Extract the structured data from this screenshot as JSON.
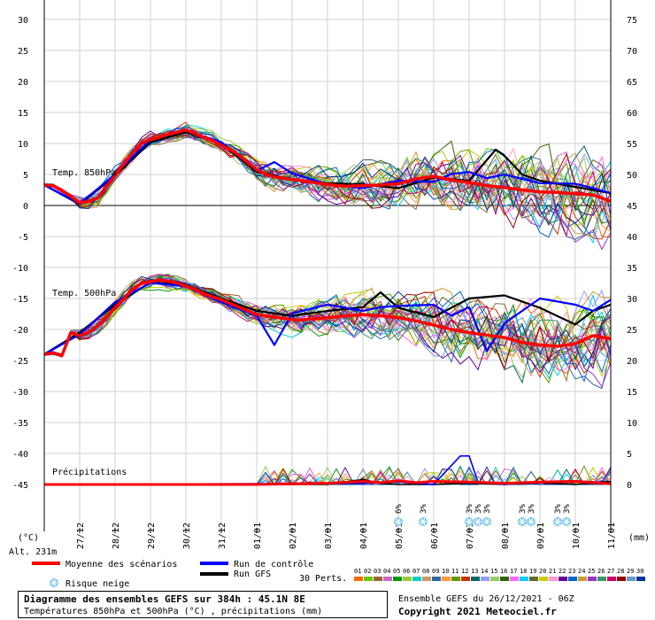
{
  "chart_data": {
    "type": "line",
    "title": "Diagramme des ensembles GEFS sur 384h : 45.1N 8E",
    "subtitle": "Températures 850hPa et 500hPa (°C) , précipitations (mm)",
    "ensemble_label": "Ensemble GEFS du 26/12/2021 - 06Z",
    "copyright": "Copyright 2021 Meteociel.fr",
    "left_axis": {
      "unit": "(°C)",
      "range": [
        -45,
        30
      ],
      "ticks": [
        30,
        25,
        20,
        15,
        10,
        5,
        0,
        -5,
        -10,
        -15,
        -20,
        -25,
        -30,
        -35,
        -40,
        -45
      ]
    },
    "right_axis": {
      "unit": "(mm)",
      "range": [
        0,
        75
      ],
      "ticks": [
        75,
        70,
        65,
        60,
        55,
        50,
        45,
        40,
        35,
        30,
        25,
        20,
        15,
        10,
        5,
        0
      ]
    },
    "altitude": "Alt. 231m",
    "x_dates": [
      "27/12",
      "28/12",
      "29/12",
      "30/12",
      "31/12",
      "01/01",
      "02/01",
      "03/01",
      "04/01",
      "05/01",
      "06/01",
      "07/01",
      "08/01",
      "09/01",
      "10/01",
      "11/01"
    ],
    "panel_labels": {
      "t850": "Temp. 850hPa",
      "t500": "Temp. 500hPa",
      "precip": "Précipitations"
    },
    "snow_risk": [
      {
        "day": 10.0,
        "pct": "6%"
      },
      {
        "day": 10.7,
        "pct": "3%"
      },
      {
        "day": 12.0,
        "pct": "3%"
      },
      {
        "day": 12.25,
        "pct": "3%"
      },
      {
        "day": 12.5,
        "pct": "3%"
      },
      {
        "day": 13.5,
        "pct": "3%"
      },
      {
        "day": 13.75,
        "pct": "3%"
      },
      {
        "day": 14.5,
        "pct": "3%"
      },
      {
        "day": 14.75,
        "pct": "3%"
      }
    ],
    "series": [
      {
        "name": "Moyenne des scénarios",
        "color": "#ff0000",
        "t850": {
          "day": [
            0,
            0.25,
            0.5,
            0.75,
            1,
            1.25,
            1.5,
            1.75,
            2,
            2.25,
            2.5,
            2.75,
            3,
            3.25,
            3.5,
            3.75,
            4,
            4.25,
            4.5,
            4.75,
            5,
            5.25,
            5.5,
            5.75,
            6,
            6.25,
            6.5,
            6.75,
            7,
            7.5,
            8,
            8.5,
            9,
            9.5,
            10,
            10.5,
            11,
            11.5,
            12,
            12.5,
            13,
            13.5,
            14,
            14.5,
            15,
            15.5,
            16
          ],
          "value": [
            3.3,
            3.2,
            2.4,
            1.5,
            0.4,
            0.7,
            1.2,
            3.0,
            4.8,
            6.7,
            8.5,
            10.0,
            10.7,
            11.0,
            11.5,
            11.8,
            12.2,
            11.6,
            11.0,
            10.5,
            9.7,
            9.0,
            8.1,
            6.9,
            5.8,
            5.0,
            4.6,
            4.4,
            4.2,
            3.8,
            3.4,
            3.1,
            3.2,
            3.3,
            3.5,
            4.3,
            4.7,
            4.1,
            3.7,
            3.2,
            2.9,
            2.5,
            2.2,
            2.1,
            1.9,
            1.7,
            0.7
          ]
        },
        "t500": {
          "day": [
            0,
            0.25,
            0.5,
            0.75,
            1,
            1.25,
            1.5,
            1.75,
            2,
            2.25,
            2.5,
            2.75,
            3,
            3.25,
            3.5,
            3.75,
            4,
            4.25,
            4.5,
            4.75,
            5,
            5.25,
            5.5,
            5.75,
            6,
            6.5,
            7,
            7.25,
            7.5,
            8,
            8.5,
            9,
            9.5,
            10,
            10.5,
            11,
            11.5,
            12,
            12.5,
            13,
            13.5,
            14,
            14.5,
            15,
            15.5,
            16
          ],
          "value": [
            -24,
            -23.8,
            -24.2,
            -20.5,
            -21,
            -20.5,
            -19.5,
            -18,
            -16.5,
            -15.0,
            -13.5,
            -12.6,
            -12.3,
            -12.0,
            -12.2,
            -12.5,
            -13.0,
            -13.5,
            -14.2,
            -14.7,
            -15.2,
            -15.8,
            -16.4,
            -17.0,
            -17.6,
            -18.0,
            -18.4,
            -18.5,
            -18.3,
            -18.1,
            -17.8,
            -17.6,
            -17.8,
            -18.1,
            -18.6,
            -19.3,
            -20.0,
            -20.5,
            -20.9,
            -21.3,
            -22.1,
            -22.5,
            -22.7,
            -22.3,
            -21.0,
            -21.5
          ]
        },
        "precip": {
          "day": [
            0,
            2,
            4,
            6,
            7,
            8,
            9,
            9.5,
            10,
            10.5,
            11,
            12,
            13,
            14,
            15,
            16
          ],
          "value": [
            0,
            0,
            0,
            0,
            0.1,
            0.2,
            0.5,
            0.3,
            0.6,
            0.3,
            0.5,
            0.4,
            0.2,
            0.4,
            0.5,
            0.1
          ]
        }
      },
      {
        "name": "Run de contrôle",
        "color": "#0000ff",
        "t850": {
          "day": [
            0,
            1,
            2,
            3,
            4,
            5,
            6,
            6.5,
            7,
            8,
            9,
            10,
            11,
            11.5,
            12,
            12.5,
            13,
            14,
            15,
            15.5,
            16
          ],
          "value": [
            3.3,
            0.3,
            5.0,
            10.6,
            12.1,
            10.2,
            5.6,
            7.0,
            5.2,
            3.4,
            2.8,
            4.0,
            3.8,
            5.1,
            5.4,
            4.4,
            5.0,
            3.6,
            3.5,
            2.8,
            2.0
          ]
        },
        "t500": {
          "day": [
            0,
            1,
            2,
            3,
            4,
            5,
            6,
            6.5,
            7,
            8,
            9,
            9.5,
            10,
            11,
            11.5,
            12,
            12.5,
            13,
            14,
            15,
            15.5,
            16
          ],
          "value": [
            -24.0,
            -20.8,
            -15.6,
            -12.5,
            -13.0,
            -15.6,
            -17.8,
            -22.5,
            -17.4,
            -16.0,
            -17.0,
            -16.4,
            -16.2,
            -16.0,
            -17.8,
            -16.4,
            -23.5,
            -19.0,
            -15.0,
            -16.0,
            -17.0,
            -15.2
          ]
        },
        "precip": {
          "day": [
            0,
            9,
            10,
            11,
            11.75,
            12,
            12.25,
            13,
            14,
            15,
            16
          ],
          "value": [
            0,
            0.2,
            0.4,
            0,
            4.6,
            4.6,
            0.4,
            0,
            0.4,
            0.6,
            0.2
          ]
        }
      },
      {
        "name": "Run GFS",
        "color": "#000000",
        "t850": {
          "day": [
            0,
            1,
            2,
            3,
            4,
            5,
            6,
            7,
            8,
            9,
            10,
            11,
            12,
            12.75,
            13,
            13.5,
            14,
            15,
            16
          ],
          "value": [
            3.3,
            0.2,
            4.8,
            10.2,
            11.8,
            10.0,
            5.4,
            4.2,
            3.6,
            3.4,
            2.8,
            4.5,
            4.0,
            9.0,
            8.0,
            5.0,
            4.0,
            3.0,
            2.0
          ]
        },
        "t500": {
          "day": [
            0,
            1,
            2,
            3,
            4,
            5,
            6,
            7,
            8,
            9,
            9.5,
            10,
            11,
            12,
            13,
            14,
            15,
            15.5,
            16
          ],
          "value": [
            -24.0,
            -20.5,
            -16.0,
            -12.4,
            -12.8,
            -15.0,
            -17.0,
            -17.8,
            -17.0,
            -16.4,
            -14.0,
            -16.5,
            -18.0,
            -15.0,
            -14.5,
            -16.5,
            -19.2,
            -17.0,
            -16.0
          ]
        },
        "precip": {
          "day": [
            0,
            8,
            8.5,
            9,
            9.5,
            10,
            11,
            12,
            13,
            14,
            15,
            16
          ],
          "value": [
            0,
            0,
            0.4,
            0.8,
            0.2,
            0,
            0,
            0.2,
            0,
            0.3,
            0,
            0.5
          ]
        }
      }
    ],
    "perturbations": {
      "label": "30 Perts.",
      "ids": [
        "01",
        "02",
        "03",
        "04",
        "05",
        "06",
        "07",
        "08",
        "09",
        "10",
        "11",
        "12",
        "13",
        "14",
        "15",
        "16",
        "17",
        "18",
        "19",
        "20",
        "21",
        "22",
        "23",
        "24",
        "25",
        "26",
        "27",
        "28",
        "29",
        "30"
      ],
      "colors": [
        "#ff6600",
        "#66cc00",
        "#996633",
        "#cc66cc",
        "#009900",
        "#99cc33",
        "#00cccc",
        "#cc9966",
        "#336699",
        "#ff9933",
        "#669900",
        "#cc3300",
        "#006666",
        "#9999ff",
        "#99cc66",
        "#336600",
        "#ff66ff",
        "#00ccff",
        "#666633",
        "#cccc00",
        "#ff99cc",
        "#660099",
        "#0066cc",
        "#cc9933",
        "#9933cc",
        "#339966",
        "#cc0066",
        "#990000",
        "#6699cc",
        "#003399"
      ]
    }
  },
  "legend": {
    "mean": "Moyenne des scénarios",
    "control": "Run de contrôle",
    "gfs": "Run GFS",
    "snow": "Risque neige"
  }
}
